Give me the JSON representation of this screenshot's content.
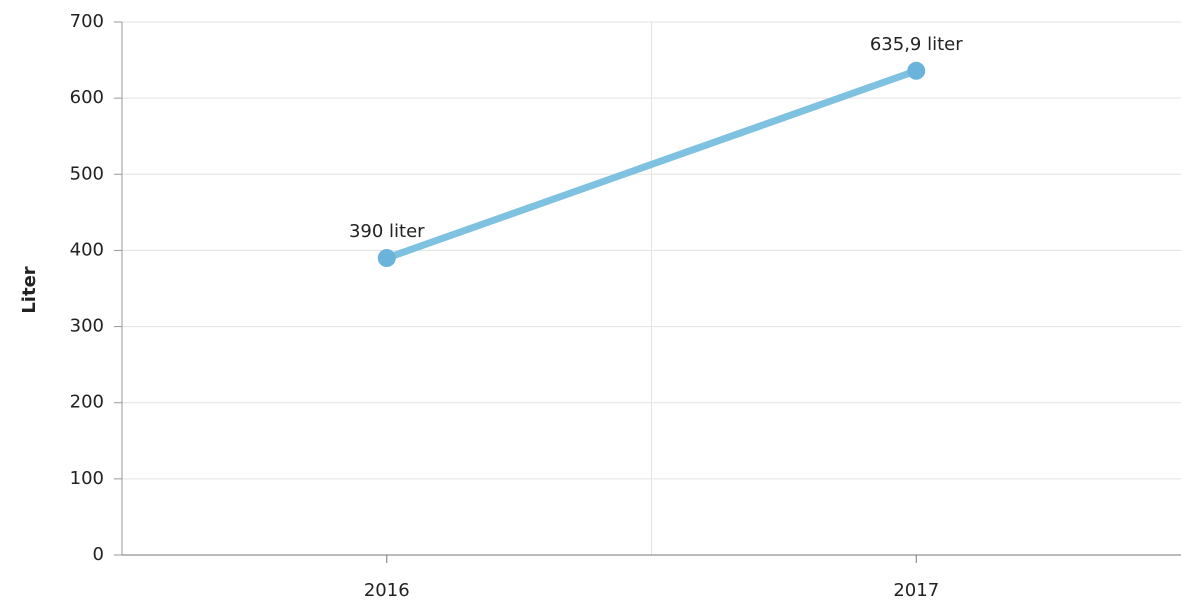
{
  "chart_data": {
    "type": "line",
    "y_label": "Liter",
    "categories": [
      "2016",
      "2017"
    ],
    "values": [
      390,
      635.9
    ],
    "value_labels": [
      "390 liter",
      "635,9 liter"
    ],
    "color": "#7fc1e0",
    "marker_color": "#6ab4dc",
    "ylim": [
      0,
      700
    ],
    "yticks": [
      0,
      100,
      200,
      300,
      400,
      500,
      600,
      700
    ],
    "grid": true
  }
}
